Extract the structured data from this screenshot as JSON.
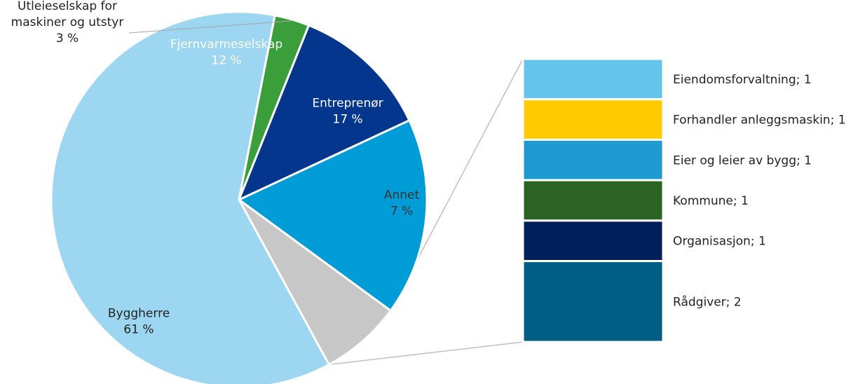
{
  "chart_data": [
    {
      "type": "pie",
      "title": "",
      "slices": [
        {
          "label": "Entreprenør",
          "pct_label": "17 %",
          "value": 17,
          "color": "#009cd8",
          "text_color": "#ffffff"
        },
        {
          "label": "Annet",
          "pct_label": "7 %",
          "value": 7,
          "color": "#c7c7c7",
          "text_color": "#333333"
        },
        {
          "label": "Byggherre",
          "pct_label": "61 %",
          "value": 61,
          "color": "#9cd6f0",
          "text_color": "#222222"
        },
        {
          "label_lines": [
            "Utleieselskap for",
            "maskiner og utstyr"
          ],
          "pct_label": "3 %",
          "value": 3,
          "color": "#3a9e3a",
          "text_color": "#222222"
        },
        {
          "label": "Fjernvarmeselskap",
          "pct_label": "12 %",
          "value": 12,
          "color": "#04368e",
          "text_color": "#ffffff"
        }
      ]
    },
    {
      "type": "bar",
      "stacked": true,
      "breakdown_of": "Annet",
      "segments": [
        {
          "label": "Eiendomsforvaltning; 1",
          "value": 1,
          "color": "#66c3ea"
        },
        {
          "label": "Forhandler anleggsmaskin; 1",
          "value": 1,
          "color": "#ffcb00"
        },
        {
          "label": "Eier og leier av bygg; 1",
          "value": 1,
          "color": "#1f9ad0"
        },
        {
          "label": "Kommune; 1",
          "value": 1,
          "color": "#2a6322"
        },
        {
          "label": "Organisasjon; 1",
          "value": 1,
          "color": "#001f5b"
        },
        {
          "label": "Rådgiver; 2",
          "value": 2,
          "color": "#005e84"
        }
      ]
    }
  ]
}
